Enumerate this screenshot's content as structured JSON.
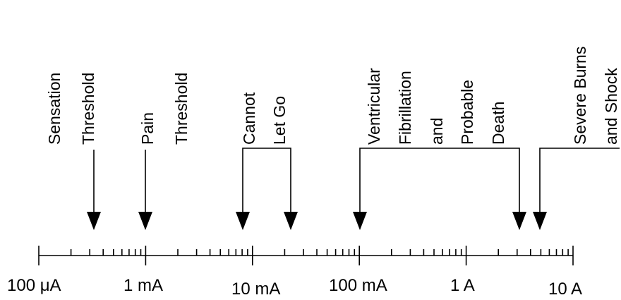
{
  "diagram": {
    "axis_labels": [
      "100 μA",
      "1 mA",
      "10 mA",
      "100 mA",
      "1 A",
      "10 A"
    ],
    "annotations": [
      {
        "id": "sensation",
        "lines": [
          "Sensation",
          "Threshold"
        ],
        "value_A": 0.0005
      },
      {
        "id": "pain",
        "lines": [
          "Pain",
          "Threshold"
        ],
        "value_A": 0.001
      },
      {
        "id": "cannot-let-go",
        "lines": [
          "Cannot",
          "Let Go"
        ],
        "range_A": [
          0.008,
          0.025
        ]
      },
      {
        "id": "vfib",
        "lines": [
          "Ventricular",
          "Fibrillation",
          "and",
          "Probable",
          "Death"
        ],
        "range_A": [
          0.1,
          3
        ]
      },
      {
        "id": "severe",
        "lines": [
          "Severe Burns",
          "and Shock"
        ],
        "from_A": 4.5
      }
    ]
  }
}
